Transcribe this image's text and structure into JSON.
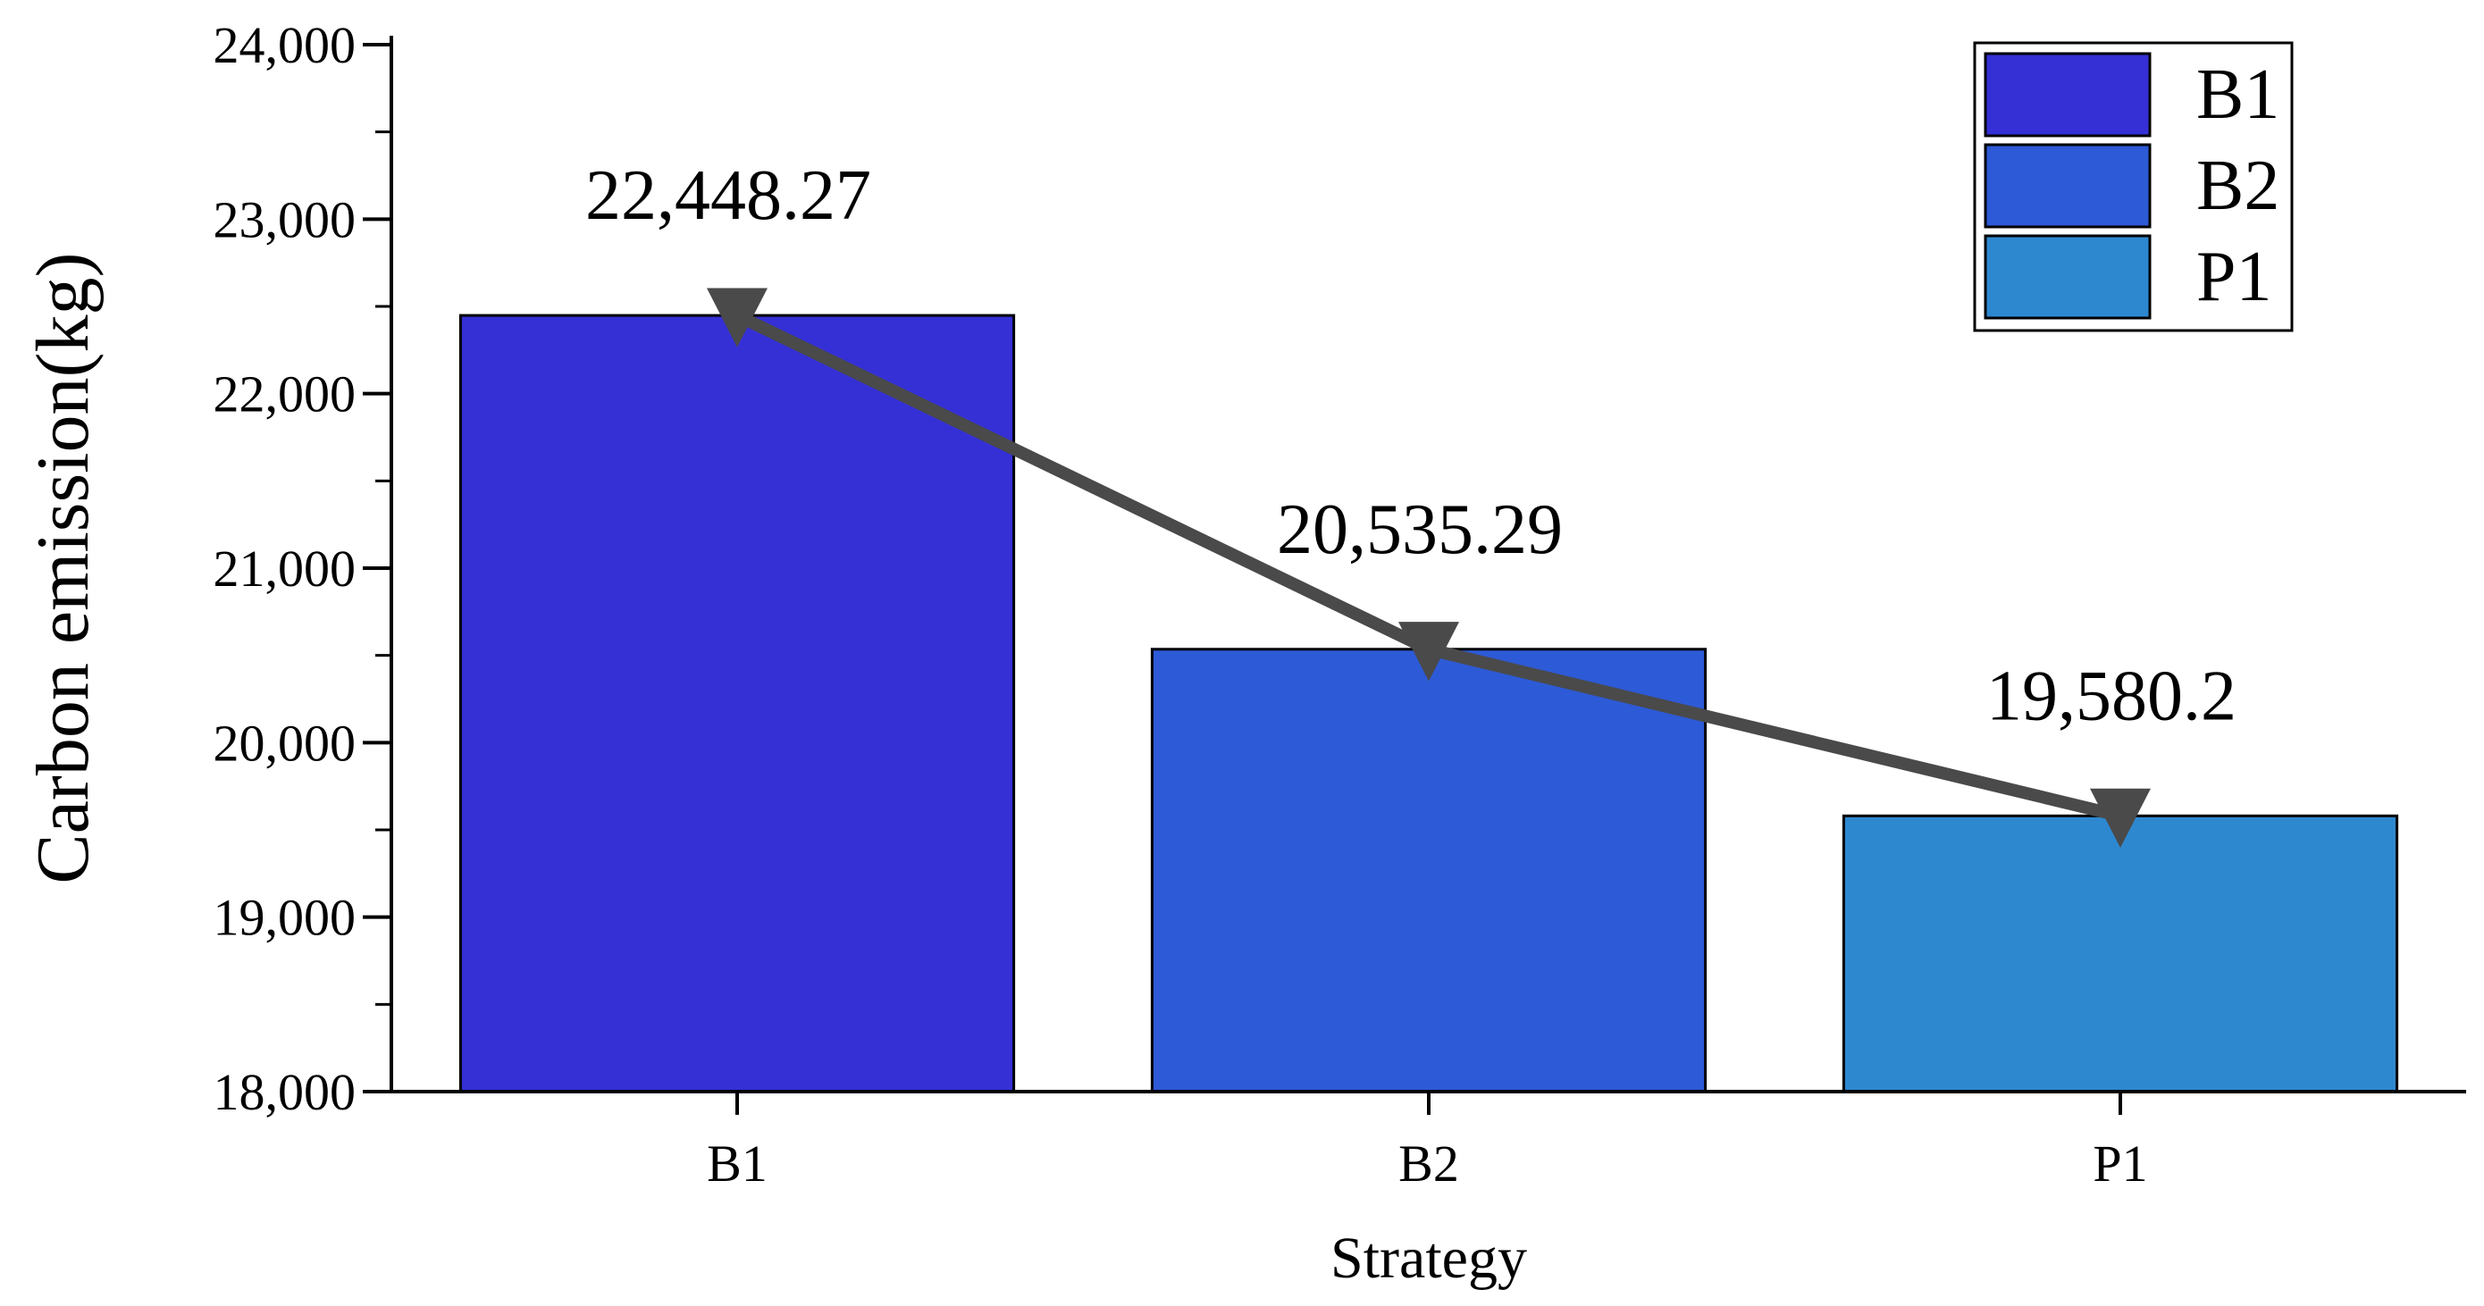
{
  "chart_data": {
    "type": "bar",
    "categories": [
      "B1",
      "B2",
      "P1"
    ],
    "values": [
      22448.27,
      20535.29,
      19580.2
    ],
    "value_labels": [
      "22,448.27",
      "20,535.29",
      "19,580.2"
    ],
    "bar_colors": [
      "#3430d6",
      "#2d5ad6",
      "#2e88d0"
    ],
    "line_color": "#4a4a4a",
    "xlabel": "Strategy",
    "ylabel": "Carbon emission(kg)",
    "ylim": [
      18000,
      24000
    ],
    "yticks": [
      18000,
      19000,
      20000,
      21000,
      22000,
      23000,
      24000
    ],
    "ytick_labels": [
      "18,000",
      "19,000",
      "20,000",
      "21,000",
      "22,000",
      "23,000",
      "24,000"
    ],
    "overlay_line": {
      "marker": "triangle-down",
      "values": [
        22448.27,
        20535.29,
        19580.2
      ]
    },
    "legend": {
      "position": "top-right",
      "entries": [
        "B1",
        "B2",
        "P1"
      ]
    },
    "grid": false
  }
}
